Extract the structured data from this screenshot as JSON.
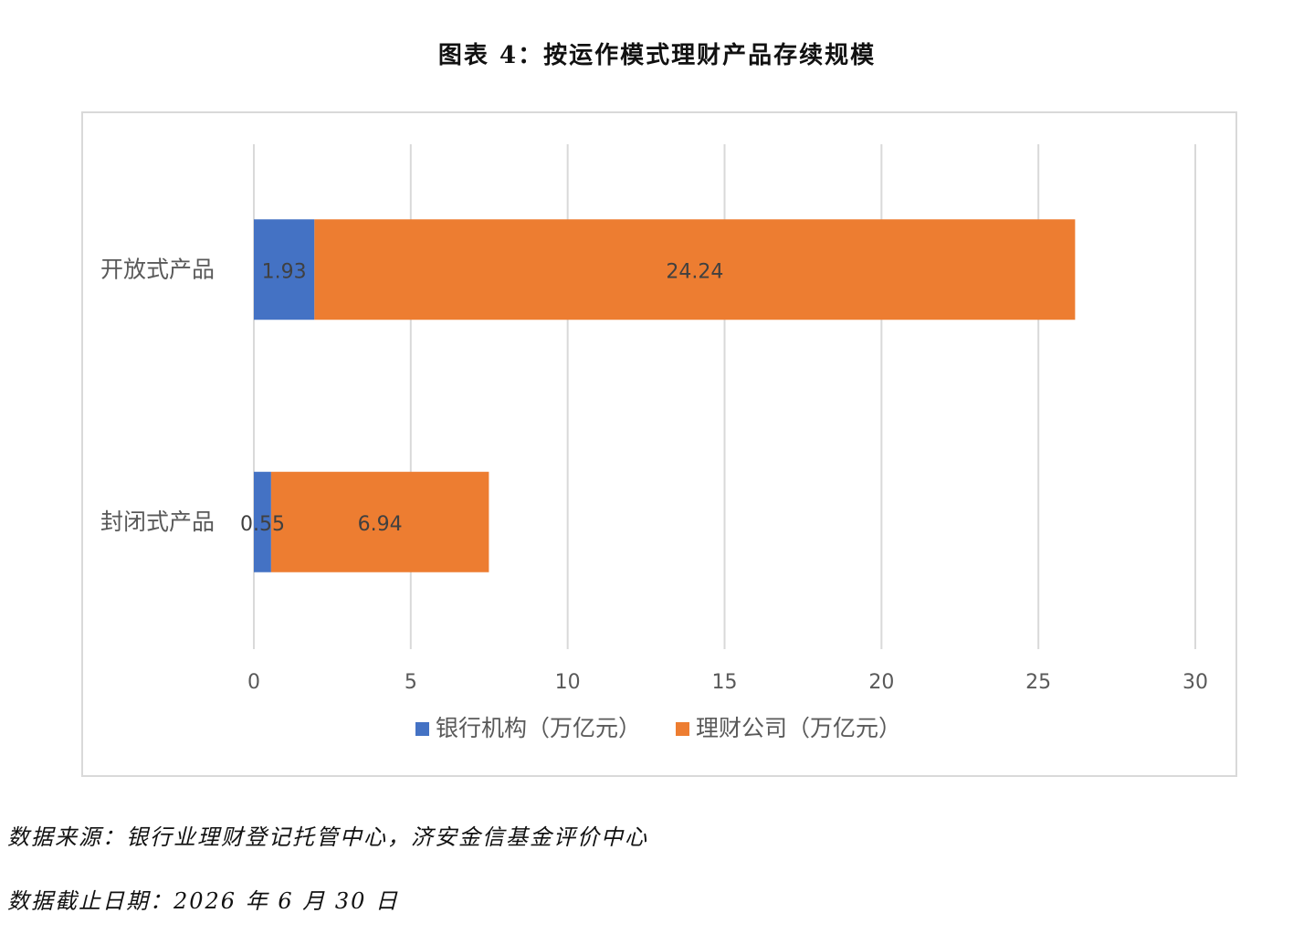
{
  "figure": {
    "title": "图表 4：按运作模式理财产品存续规模"
  },
  "chart_data": {
    "type": "bar",
    "orientation": "horizontal",
    "stacked": true,
    "categories": [
      "开放式产品",
      "封闭式产品"
    ],
    "series": [
      {
        "name": "银行机构（万亿元）",
        "values": [
          1.93,
          0.55
        ],
        "data_labels": [
          "1.93",
          "0.55"
        ],
        "color": "#4472c4"
      },
      {
        "name": "理财公司（万亿元）",
        "values": [
          24.24,
          6.94
        ],
        "data_labels": [
          "24.24",
          "6.94"
        ],
        "color": "#ed7d31"
      }
    ],
    "x_ticks": [
      "0",
      "5",
      "10",
      "15",
      "20",
      "25",
      "30"
    ],
    "xlim": [
      0,
      30
    ],
    "grid": "vertical",
    "legend_position": "bottom"
  },
  "notes": {
    "source": "数据来源：银行业理财登记托管中心，济安金信基金评价中心",
    "date": "数据截止日期：2026 年 6 月 30 日"
  }
}
